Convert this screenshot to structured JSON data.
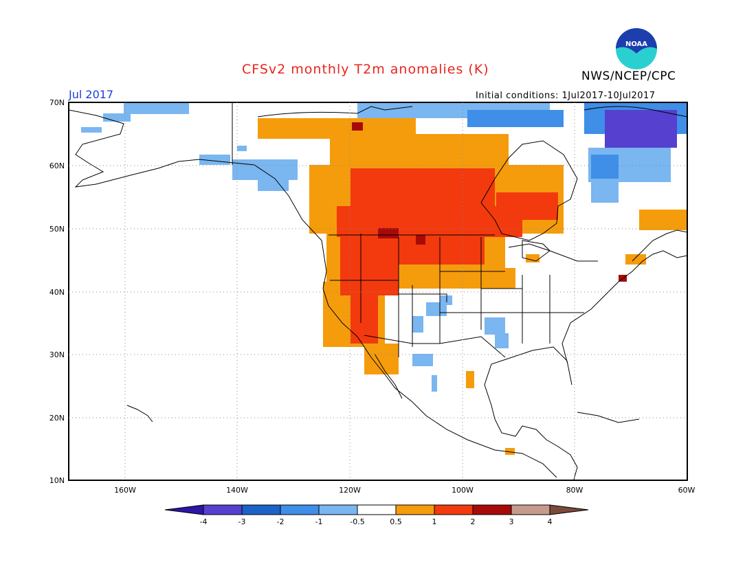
{
  "header": {
    "title": "CFSv2 monthly T2m anomalies (K)",
    "agency": "NWS/NCEP/CPC",
    "month": "Jul 2017",
    "initial_conditions": "Initial conditions: 1Jul2017-10Jul2017",
    "logo_text": "NOAA"
  },
  "map": {
    "projection": "lat-lon",
    "lon_range": [
      -170,
      -60
    ],
    "lat_range": [
      10,
      70
    ],
    "x_ticks": [
      "160W",
      "140W",
      "120W",
      "100W",
      "80W",
      "60W"
    ],
    "y_ticks": [
      "70N",
      "60N",
      "50N",
      "40N",
      "30N",
      "20N",
      "10N"
    ],
    "grid": "dotted"
  },
  "colorbar": {
    "labels": [
      "-4",
      "-3",
      "-2",
      "-1",
      "-0.5",
      "0.5",
      "1",
      "2",
      "3",
      "4"
    ],
    "colors": [
      "#2b16a6",
      "#5540d0",
      "#1c62c8",
      "#3f8ee8",
      "#7ab6f0",
      "#ffffff",
      "#f59c0c",
      "#f23a0e",
      "#a80a0a",
      "#c69b8e",
      "#7b4a3a"
    ]
  },
  "colors": {
    "cold_light": "#7ab6f0",
    "cold_mid": "#3f8ee8",
    "cold_strong": "#5540d0",
    "warm_light": "#f59c0c",
    "warm_mid": "#f23a0e",
    "warm_strong": "#a80a0a",
    "title": "#e8241e",
    "month": "#1a3fd8"
  }
}
